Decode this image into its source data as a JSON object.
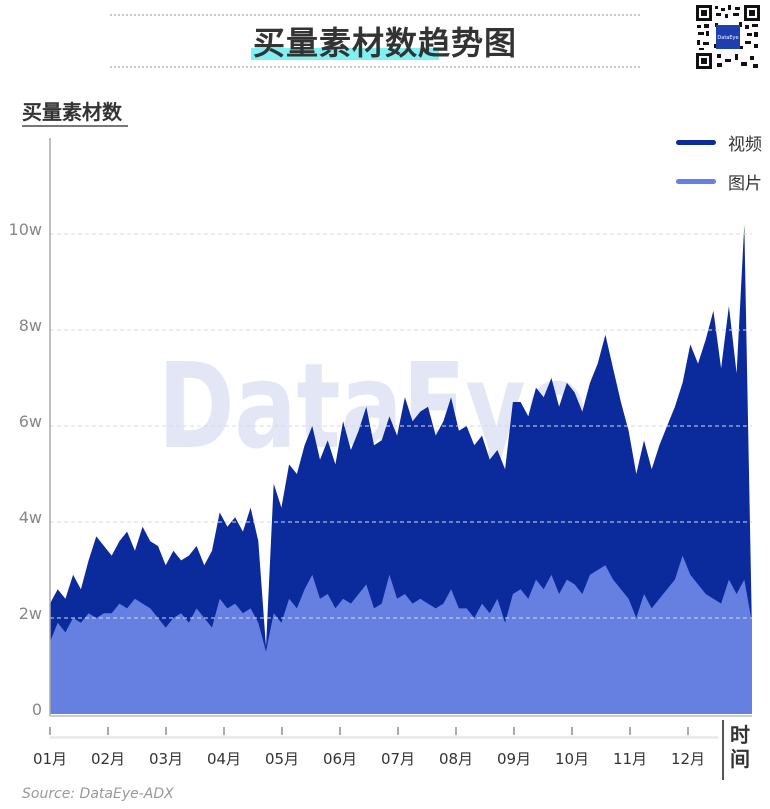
{
  "header": {
    "title": "买量素材数趋势图",
    "title_highlight": "买量素材数",
    "qr_label": "DataEye"
  },
  "chart_data": {
    "type": "area",
    "title": "买量素材数趋势图",
    "ylabel": "买量素材数",
    "xlabel": "时间",
    "ylim": [
      0,
      12
    ],
    "yticks": [
      0,
      2,
      4,
      6,
      8,
      10
    ],
    "ytick_labels": [
      "0",
      "2w",
      "4w",
      "6w",
      "8w",
      "10w"
    ],
    "categories": [
      "01月",
      "02月",
      "03月",
      "04月",
      "05月",
      "06月",
      "07月",
      "08月",
      "09月",
      "10月",
      "11月",
      "12月"
    ],
    "grid": true,
    "legend_position": "top-right",
    "stacked": true,
    "watermark": "DataEye",
    "series": [
      {
        "name": "视频",
        "color": "#0b2a9b",
        "stacked_total_values": [
          2.3,
          2.6,
          2.4,
          2.9,
          2.6,
          3.2,
          3.7,
          3.5,
          3.3,
          3.6,
          3.8,
          3.4,
          3.9,
          3.6,
          3.5,
          3.1,
          3.4,
          3.2,
          3.3,
          3.5,
          3.1,
          3.4,
          4.2,
          3.9,
          4.1,
          3.8,
          4.3,
          3.6,
          1.4,
          4.8,
          4.3,
          5.2,
          5.0,
          5.6,
          6.0,
          5.3,
          5.7,
          5.2,
          6.1,
          5.5,
          5.9,
          6.4,
          5.6,
          5.7,
          6.2,
          5.8,
          6.6,
          6.1,
          6.3,
          6.4,
          5.8,
          6.1,
          6.6,
          5.9,
          6.0,
          5.6,
          5.8,
          5.3,
          5.5,
          5.1,
          6.5,
          6.5,
          6.2,
          6.8,
          6.6,
          7.0,
          6.4,
          6.9,
          6.7,
          6.3,
          6.9,
          7.3,
          7.9,
          7.2,
          6.5,
          5.9,
          5.0,
          5.7,
          5.1,
          5.6,
          6.0,
          6.4,
          6.9,
          7.7,
          7.3,
          7.8,
          8.4,
          7.2,
          8.5,
          7.1,
          10.2,
          1.7
        ],
        "values_note": "visible top of dark area = 视频 + 图片 (stacked total), in 万 (w)"
      },
      {
        "name": "图片",
        "color": "#6680e2",
        "values": [
          1.5,
          1.9,
          1.7,
          2.0,
          1.9,
          2.1,
          2.0,
          2.1,
          2.1,
          2.3,
          2.2,
          2.4,
          2.3,
          2.2,
          2.0,
          1.8,
          2.0,
          2.1,
          1.9,
          2.2,
          2.0,
          1.8,
          2.4,
          2.2,
          2.3,
          2.1,
          2.2,
          1.9,
          1.3,
          2.1,
          1.9,
          2.4,
          2.2,
          2.6,
          2.9,
          2.4,
          2.5,
          2.2,
          2.4,
          2.3,
          2.5,
          2.7,
          2.2,
          2.3,
          2.9,
          2.4,
          2.5,
          2.3,
          2.4,
          2.3,
          2.2,
          2.3,
          2.6,
          2.2,
          2.2,
          2.0,
          2.3,
          2.1,
          2.4,
          1.9,
          2.5,
          2.6,
          2.4,
          2.8,
          2.6,
          2.9,
          2.5,
          2.8,
          2.7,
          2.5,
          2.9,
          3.0,
          3.1,
          2.8,
          2.6,
          2.4,
          2.0,
          2.5,
          2.2,
          2.4,
          2.6,
          2.8,
          3.3,
          2.9,
          2.7,
          2.5,
          2.4,
          2.3,
          2.8,
          2.5,
          2.8,
          1.9
        ]
      }
    ]
  },
  "axes": {
    "y_title": "买量素材数",
    "y_labels": [
      "10w",
      "8w",
      "6w",
      "4w",
      "2w",
      "0"
    ],
    "x_labels": [
      "01月",
      "02月",
      "03月",
      "04月",
      "05月",
      "06月",
      "07月",
      "08月",
      "09月",
      "10月",
      "11月",
      "12月"
    ],
    "x_title": "时间"
  },
  "legend": {
    "items": [
      {
        "label": "视频",
        "color": "#0b2a9b"
      },
      {
        "label": "图片",
        "color": "#6680e2"
      }
    ]
  },
  "footer": {
    "source": "Source: DataEye-ADX"
  }
}
